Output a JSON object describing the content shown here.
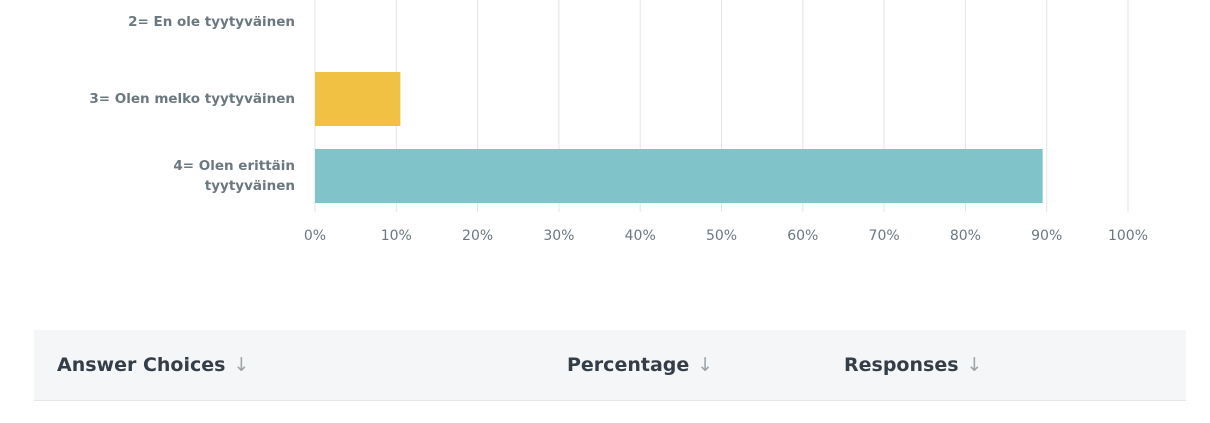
{
  "chart_data": {
    "type": "barh",
    "categories": [
      "2= En ole tyytyväinen",
      "3= Olen melko tyytyväinen",
      "4= Olen erittäin\ntyytyväinen"
    ],
    "series": [
      {
        "values": [
          0,
          10.5,
          89.5
        ],
        "colors": [
          "#f0c142",
          "#f0c142",
          "#80c4ca"
        ]
      }
    ],
    "xlim": [
      0,
      100
    ],
    "xticks": [
      {
        "value": 0,
        "label": "0%"
      },
      {
        "value": 10,
        "label": "10%"
      },
      {
        "value": 20,
        "label": "20%"
      },
      {
        "value": 30,
        "label": "30%"
      },
      {
        "value": 40,
        "label": "40%"
      },
      {
        "value": 50,
        "label": "50%"
      },
      {
        "value": 60,
        "label": "60%"
      },
      {
        "value": 70,
        "label": "70%"
      },
      {
        "value": 80,
        "label": "80%"
      },
      {
        "value": 90,
        "label": "90%"
      },
      {
        "value": 100,
        "label": "100%"
      }
    ],
    "grid": true
  },
  "table": {
    "header": [
      "Answer Choices",
      "Percentage",
      "Responses"
    ]
  }
}
